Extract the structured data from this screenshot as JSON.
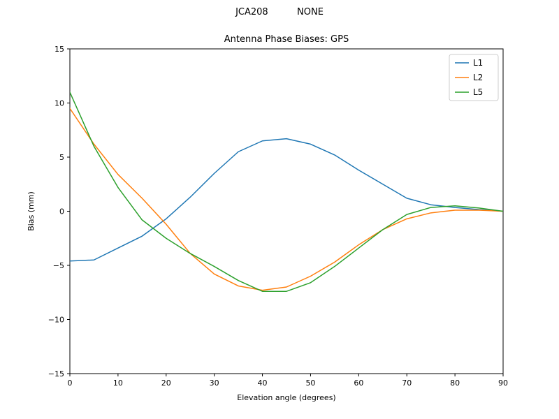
{
  "figure": {
    "suptitle": "JCA208          NONE"
  },
  "chart_data": {
    "type": "line",
    "title": "Antenna Phase Biases: GPS",
    "xlabel": "Elevation angle (degrees)",
    "ylabel": "Bias (mm)",
    "xlim": [
      0,
      90
    ],
    "ylim": [
      -15,
      15
    ],
    "xticks": [
      0,
      10,
      20,
      30,
      40,
      50,
      60,
      70,
      80,
      90
    ],
    "yticks": [
      -15,
      -10,
      -5,
      0,
      5,
      10,
      15
    ],
    "grid": false,
    "legend_position": "upper right",
    "x": [
      0,
      5,
      10,
      15,
      20,
      25,
      30,
      35,
      40,
      45,
      50,
      55,
      60,
      65,
      70,
      75,
      80,
      85,
      90
    ],
    "series": [
      {
        "name": "L1",
        "color": "#1f77b4",
        "values": [
          -4.6,
          -4.5,
          -3.4,
          -2.3,
          -0.7,
          1.3,
          3.5,
          5.5,
          6.5,
          6.7,
          6.2,
          5.2,
          3.8,
          2.5,
          1.2,
          0.6,
          0.35,
          0.15,
          0.0
        ]
      },
      {
        "name": "L2",
        "color": "#ff7f0e",
        "values": [
          9.5,
          6.2,
          3.4,
          1.2,
          -1.2,
          -3.9,
          -5.8,
          -6.9,
          -7.3,
          -7.0,
          -6.0,
          -4.7,
          -3.1,
          -1.7,
          -0.7,
          -0.15,
          0.1,
          0.1,
          0.0
        ]
      },
      {
        "name": "L5",
        "color": "#2ca02c",
        "values": [
          11.0,
          6.0,
          2.2,
          -0.8,
          -2.5,
          -3.9,
          -5.1,
          -6.4,
          -7.4,
          -7.4,
          -6.6,
          -5.1,
          -3.4,
          -1.7,
          -0.3,
          0.35,
          0.5,
          0.3,
          0.0
        ]
      }
    ]
  }
}
